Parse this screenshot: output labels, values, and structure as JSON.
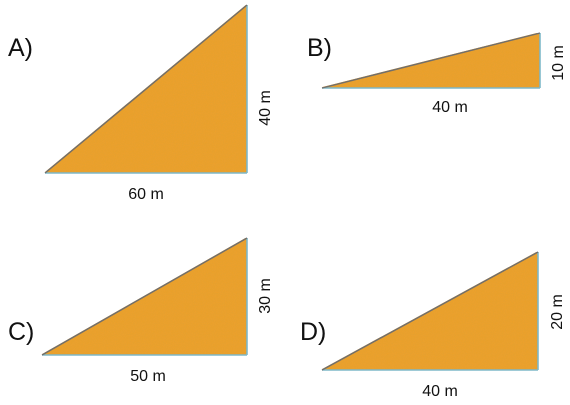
{
  "colors": {
    "fill": "#F0A12C",
    "fill_dark": "#E08F1E",
    "edge": "#7FB9C9",
    "hypotenuse": "#6F6F6F"
  },
  "triangles": [
    {
      "letter": "A)",
      "base_label": "60 m",
      "height_label": "40 m"
    },
    {
      "letter": "B)",
      "base_label": "40 m",
      "height_label": "10 m"
    },
    {
      "letter": "C)",
      "base_label": "50 m",
      "height_label": "30 m"
    },
    {
      "letter": "D)",
      "base_label": "40 m",
      "height_label": "20 m"
    }
  ]
}
